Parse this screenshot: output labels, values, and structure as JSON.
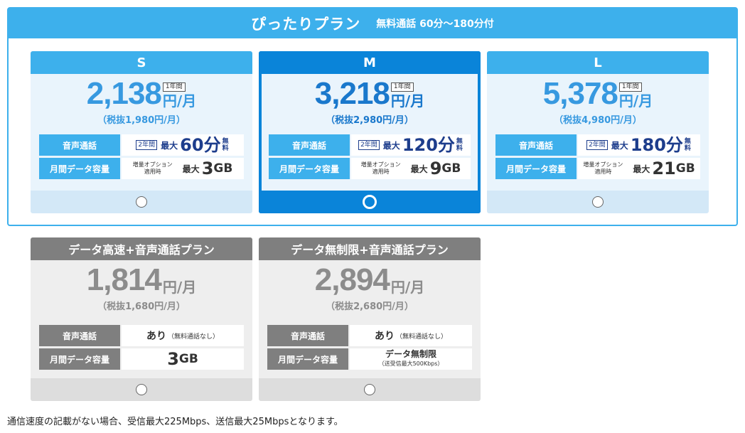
{
  "pittari": {
    "title": "ぴったりプラン",
    "subtitle": "無料通話 60分〜180分付",
    "plans": [
      {
        "name": "S",
        "price": "2,138",
        "badge": "1年間",
        "unit": "円/月",
        "taxless": "（税抜1,980円/月）",
        "voice_label": "音声通話",
        "voice_badge": "2年間",
        "voice_max": "最大",
        "voice_value": "60分",
        "voice_free": "無料",
        "data_label": "月間データ容量",
        "data_opt": "増量オプション\n適用時",
        "data_max": "最大",
        "data_num": "3",
        "data_unit": "GB",
        "selected": false
      },
      {
        "name": "M",
        "price": "3,218",
        "badge": "1年間",
        "unit": "円/月",
        "taxless": "（税抜2,980円/月）",
        "voice_label": "音声通話",
        "voice_badge": "2年間",
        "voice_max": "最大",
        "voice_value": "120分",
        "voice_free": "無料",
        "data_label": "月間データ容量",
        "data_opt": "増量オプション\n適用時",
        "data_max": "最大",
        "data_num": "9",
        "data_unit": "GB",
        "selected": true
      },
      {
        "name": "L",
        "price": "5,378",
        "badge": "1年間",
        "unit": "円/月",
        "taxless": "（税抜4,980円/月）",
        "voice_label": "音声通話",
        "voice_badge": "2年間",
        "voice_max": "最大",
        "voice_value": "180分",
        "voice_free": "無料",
        "data_label": "月間データ容量",
        "data_opt": "増量オプション\n適用時",
        "data_max": "最大",
        "data_num": "21",
        "data_unit": "GB",
        "selected": false
      }
    ]
  },
  "other_plans": [
    {
      "name": "データ高速+音声通話プラン",
      "price": "1,814",
      "unit": "円/月",
      "taxless": "（税抜1,680円/月）",
      "voice_label": "音声通話",
      "voice_value": "あり",
      "voice_note": "（無料通話なし）",
      "data_label": "月間データ容量",
      "data_num": "3",
      "data_unit": "GB"
    },
    {
      "name": "データ無制限+音声通話プラン",
      "price": "2,894",
      "unit": "円/月",
      "taxless": "（税抜2,680円/月）",
      "voice_label": "音声通話",
      "voice_value": "あり",
      "voice_note": "（無料通話なし）",
      "data_label": "月間データ容量",
      "data_value": "データ無制限",
      "data_note": "（送受信最大500Kbps）"
    }
  ],
  "footnote": "通信速度の記載がない場合、受信最大225Mbps、送信最大25Mbpsとなります。",
  "colors": {
    "accent": "#3db0ec",
    "selected": "#0a84d9",
    "gray": "#7f7f7f",
    "navy": "#1d3d8c"
  }
}
